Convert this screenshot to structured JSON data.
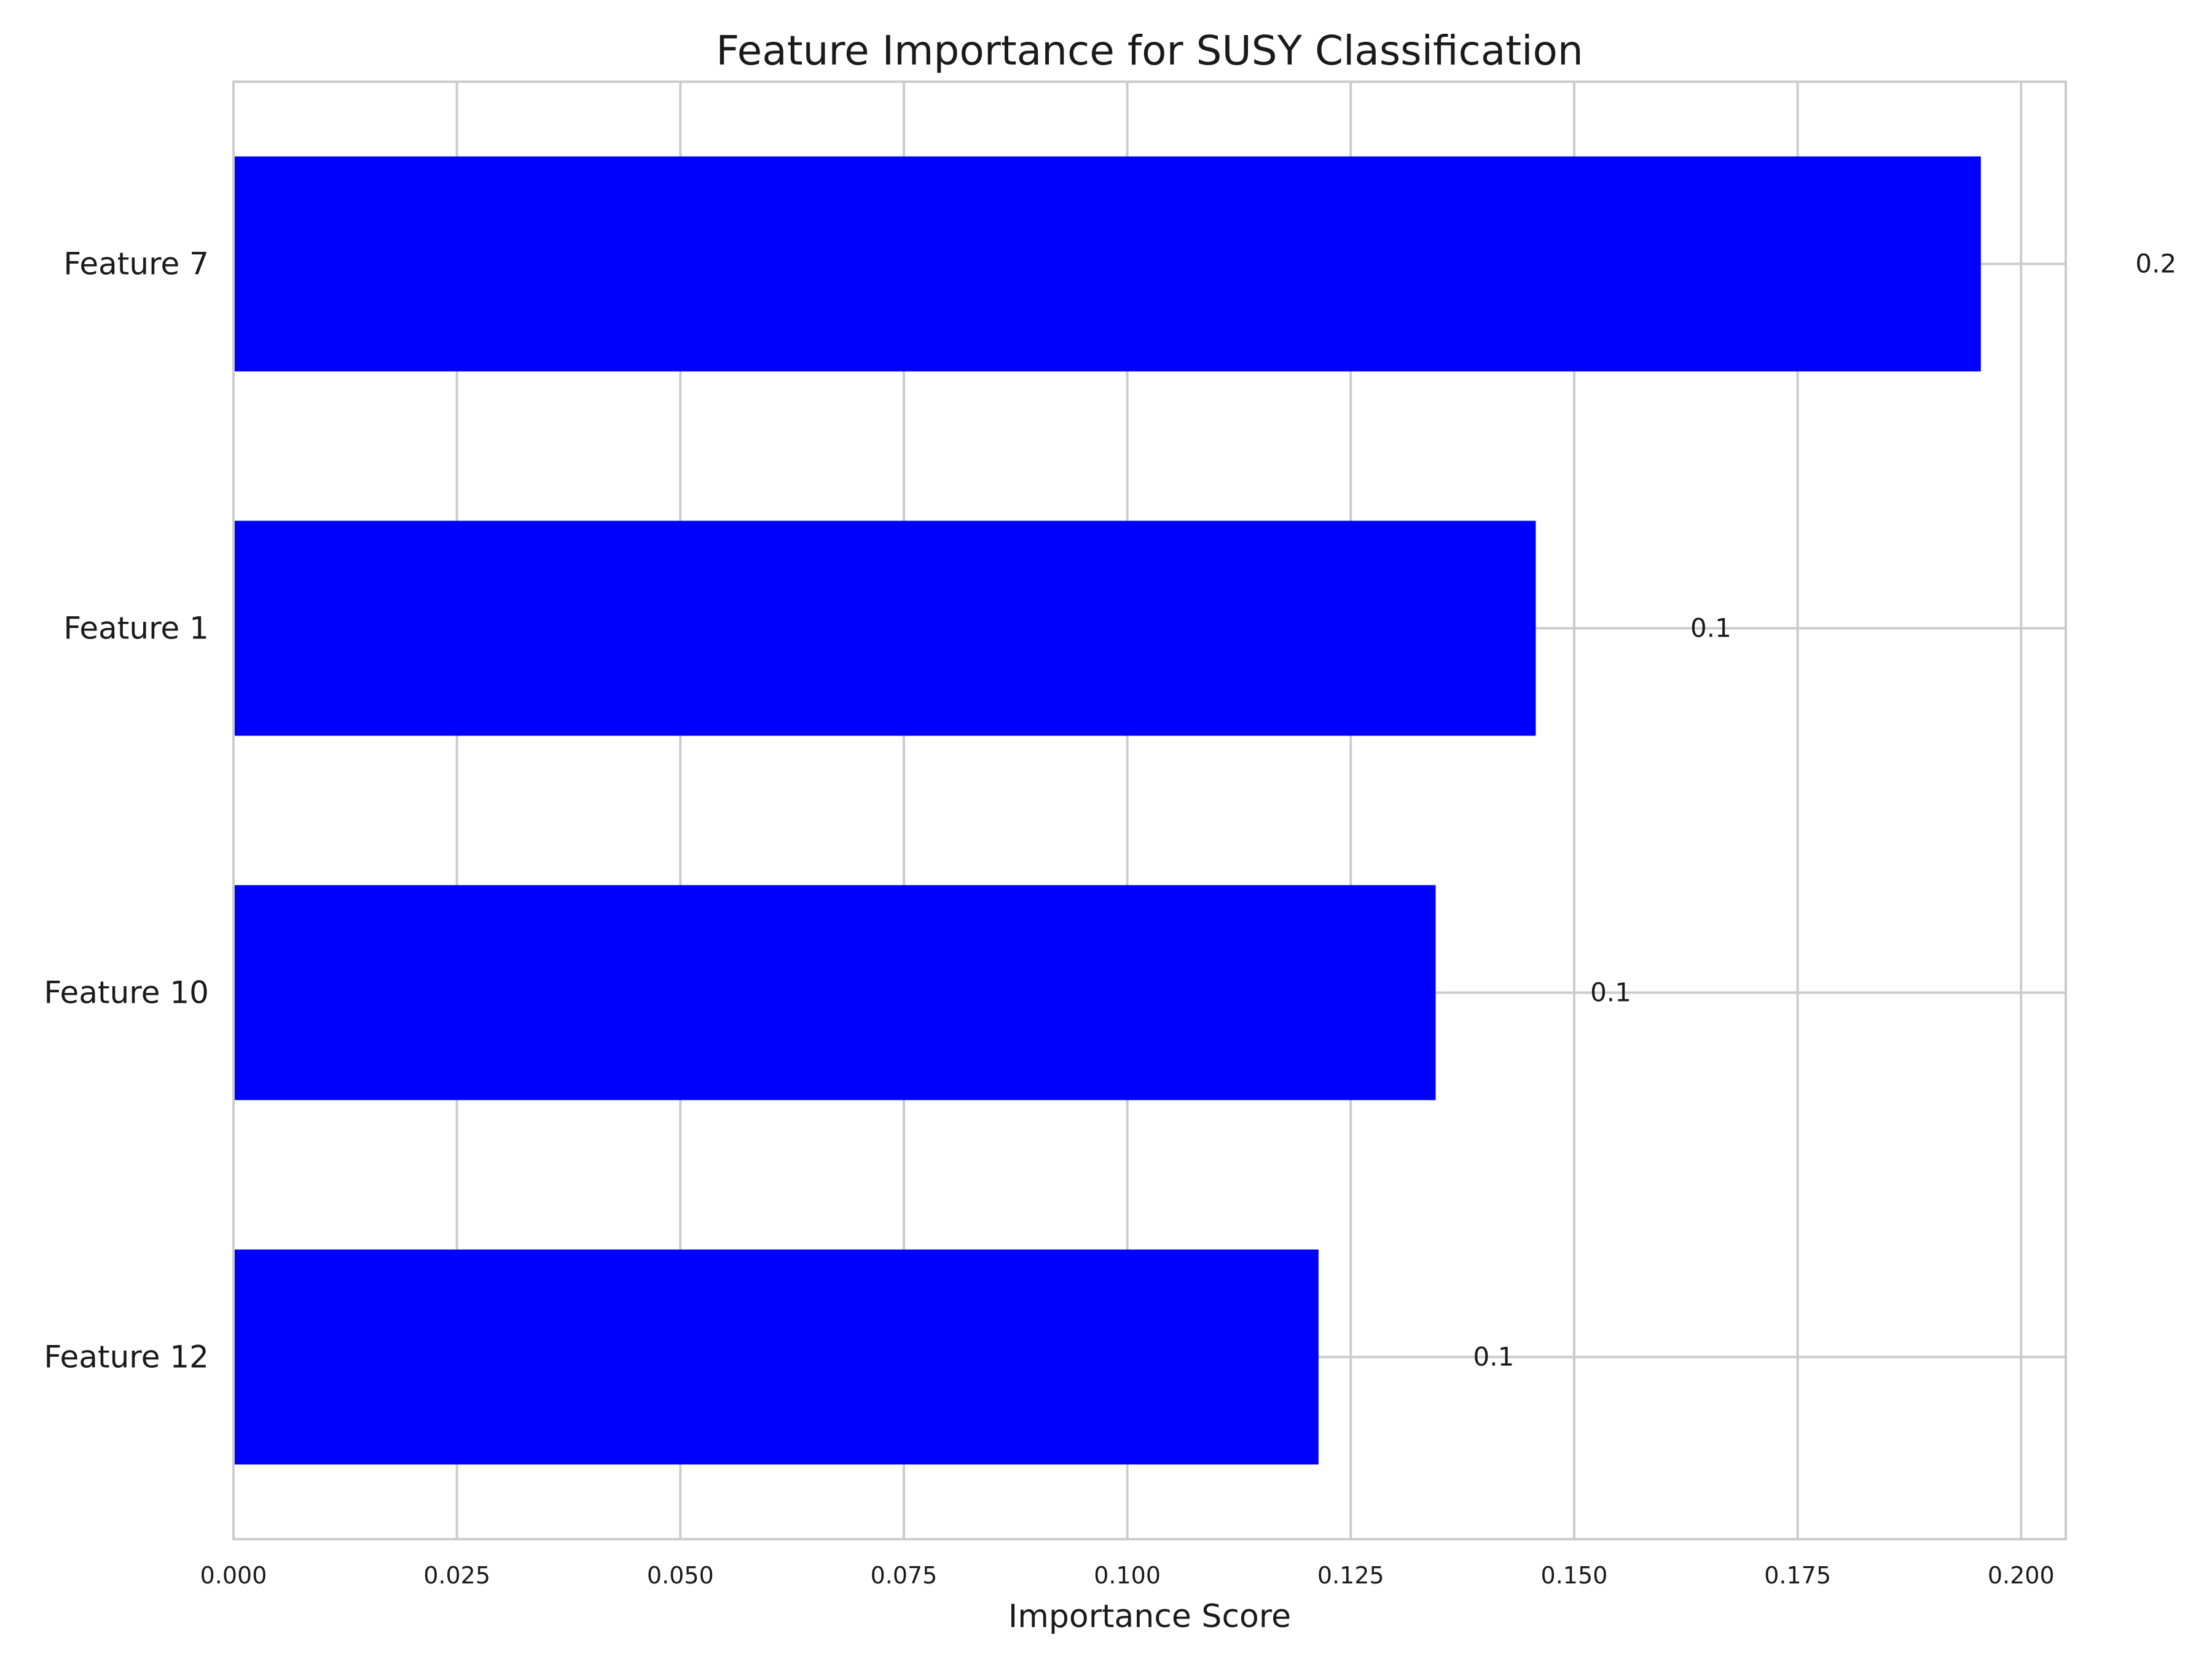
{
  "chart_data": {
    "type": "bar",
    "orientation": "horizontal",
    "title": "Feature Importance for SUSY Classification",
    "xlabel": "Importance Score",
    "ylabel": "",
    "categories": [
      "Feature 7",
      "Feature 1",
      "Feature 10",
      "Feature 12"
    ],
    "values": [
      0.1955,
      0.1457,
      0.1345,
      0.1214
    ],
    "data_labels": [
      "0.2",
      "0.1",
      "0.1",
      "0.1"
    ],
    "xlim": [
      0,
      0.205
    ],
    "xticks": [
      0.0,
      0.025,
      0.05,
      0.075,
      0.1,
      0.125,
      0.15,
      0.175,
      0.2
    ],
    "xtick_labels": [
      "0.000",
      "0.025",
      "0.050",
      "0.075",
      "0.100",
      "0.125",
      "0.150",
      "0.175",
      "0.200"
    ],
    "grid": true,
    "bar_color": "#0000ff",
    "grid_color": "#cccccc"
  }
}
